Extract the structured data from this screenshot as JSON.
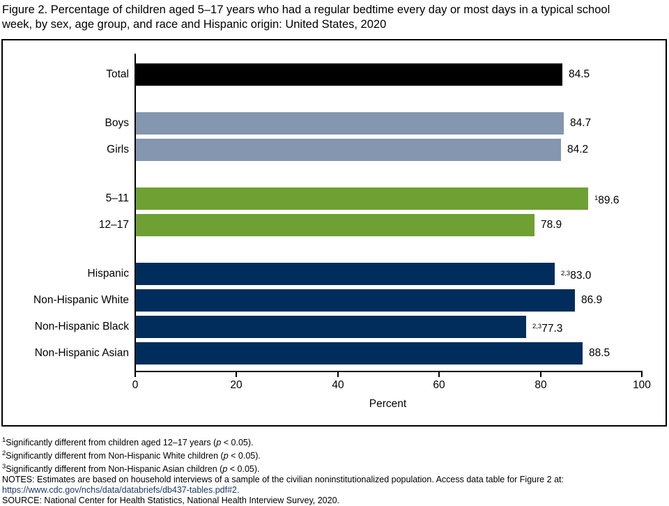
{
  "title": {
    "line1": "Figure 2. Percentage of children aged 5–17 years who had a regular bedtime every day or most days in a typical school",
    "line2": "week, by sex, age group, and race and Hispanic origin: United States, 2020"
  },
  "chart_data": {
    "type": "bar",
    "orientation": "horizontal",
    "title": "Figure 2. Percentage of children aged 5–17 years who had a regular bedtime every day or most days in a typical school week, by sex, age group, and race and Hispanic origin: United States, 2020",
    "xlabel": "Percent",
    "xlim": [
      0,
      100
    ],
    "xticks": [
      "0",
      "20",
      "40",
      "60",
      "80",
      "100"
    ],
    "grid": false,
    "legend": "none",
    "groups": [
      {
        "group": "total",
        "color": "#000000",
        "bars": [
          {
            "label": "Total",
            "value": 84.5,
            "display": "84.5",
            "sup": ""
          }
        ]
      },
      {
        "group": "sex",
        "color": "#8496B0",
        "bars": [
          {
            "label": "Boys",
            "value": 84.7,
            "display": "84.7",
            "sup": ""
          },
          {
            "label": "Girls",
            "value": 84.2,
            "display": "84.2",
            "sup": ""
          }
        ]
      },
      {
        "group": "age",
        "color": "#6FA033",
        "bars": [
          {
            "label": "5–11",
            "value": 89.6,
            "display": "89.6",
            "sup": "1"
          },
          {
            "label": "12–17",
            "value": 78.9,
            "display": "78.9",
            "sup": ""
          }
        ]
      },
      {
        "group": "race-hispanic-origin",
        "color": "#002D5C",
        "bars": [
          {
            "label": "Hispanic",
            "value": 83.0,
            "display": "83.0",
            "sup": "2,3"
          },
          {
            "label": "Non-Hispanic White",
            "value": 86.9,
            "display": "86.9",
            "sup": ""
          },
          {
            "label": "Non-Hispanic Black",
            "value": 77.3,
            "display": "77.3",
            "sup": "2,3"
          },
          {
            "label": "Non-Hispanic Asian",
            "value": 88.5,
            "display": "88.5",
            "sup": ""
          }
        ]
      }
    ]
  },
  "footnotes": {
    "lines": [
      {
        "name": "footnote-1",
        "link": false,
        "segments": [
          {
            "c": "sup",
            "v": "1"
          },
          {
            "c": "t",
            "v": "Significantly different from children aged 12–17 years ("
          },
          {
            "c": "i",
            "v": "p"
          },
          {
            "c": "t",
            "v": " < 0.05)."
          }
        ]
      },
      {
        "name": "footnote-2",
        "link": false,
        "segments": [
          {
            "c": "sup",
            "v": "2"
          },
          {
            "c": "t",
            "v": "Significantly different from Non-Hispanic White children ("
          },
          {
            "c": "i",
            "v": "p"
          },
          {
            "c": "t",
            "v": " < 0.05)."
          }
        ]
      },
      {
        "name": "footnote-3",
        "link": false,
        "segments": [
          {
            "c": "sup",
            "v": "3"
          },
          {
            "c": "t",
            "v": "Significantly different from Non-Hispanic Asian children ("
          },
          {
            "c": "i",
            "v": "p"
          },
          {
            "c": "t",
            "v": " < 0.05)."
          }
        ]
      },
      {
        "name": "notes-line",
        "link": false,
        "segments": [
          {
            "c": "t",
            "v": "NOTES: Estimates are based on household interviews of a sample of the civilian noninstitutionalized population. Access data table for Figure 2 at:"
          }
        ]
      },
      {
        "name": "data-table-link",
        "link": true,
        "segments": [
          {
            "c": "link",
            "v": "https://www.cdc.gov/nchs/data/databriefs/db437-tables.pdf#2."
          }
        ]
      },
      {
        "name": "source-line",
        "link": false,
        "segments": [
          {
            "c": "t",
            "v": "SOURCE: National Center for Health Statistics, National Health Interview Survey, 2020."
          }
        ]
      }
    ]
  },
  "colors": {
    "total_bar": "#000000",
    "sex_bars": "#8496B0",
    "age_bars": "#6FA033",
    "race_bars": "#002D5C",
    "link_text": "#1F3864"
  }
}
